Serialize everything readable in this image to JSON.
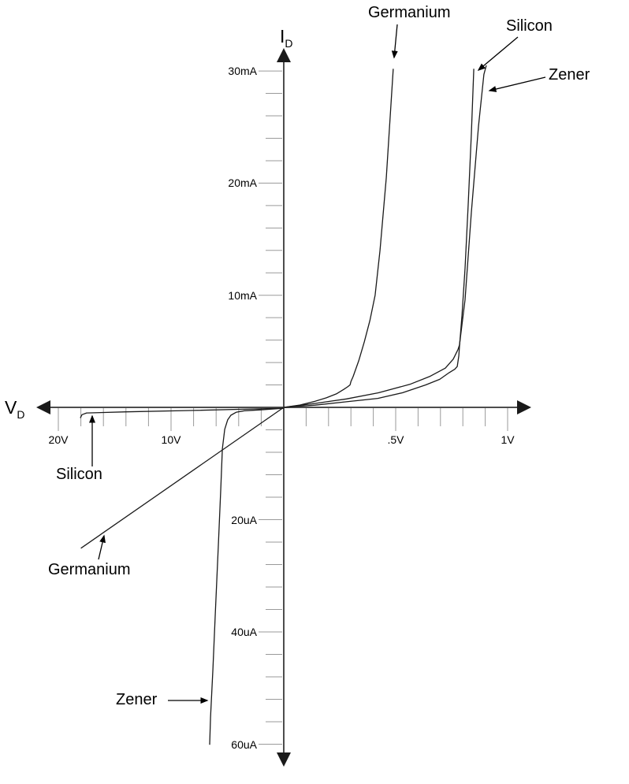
{
  "axis_labels": {
    "current": {
      "base": "I",
      "sub": "D"
    },
    "voltage": {
      "base": "V",
      "sub": "D"
    }
  },
  "annotations": {
    "germanium_top": "Germanium",
    "silicon_top": "Silicon",
    "zener_top": "Zener",
    "silicon_bottom": "Silicon",
    "germanium_bottom": "Germanium",
    "zener_bottom": "Zener"
  },
  "colors": {
    "axis": "#4d4d4d",
    "tick": "#9a9a9a",
    "curve": "#1a1a1a",
    "arrowhead": "#000000",
    "background": "#ffffff"
  },
  "chart_data": {
    "type": "line",
    "title": "",
    "description": "Forward and reverse I-V characteristic curves of Germanium, Silicon and Zener diodes; positive axes in volts/mA, negative axes compressed in volts/uA",
    "x_axis": {
      "label": "VD",
      "positive": {
        "unit": "V",
        "minor_step": 0.1,
        "max": 1.0,
        "labeled": [
          {
            "value": 0.5,
            "label": ".5V"
          },
          {
            "value": 1.0,
            "label": "1V"
          }
        ]
      },
      "negative": {
        "unit": "V",
        "minor_step": 2,
        "max": 20,
        "labeled": [
          {
            "value": -10,
            "label": "10V"
          },
          {
            "value": -20,
            "label": "20V"
          }
        ]
      }
    },
    "y_axis": {
      "label": "ID",
      "positive": {
        "unit": "mA",
        "minor_step": 2,
        "max": 30,
        "labeled": [
          {
            "value": 10,
            "label": "10mA"
          },
          {
            "value": 20,
            "label": "20mA"
          },
          {
            "value": 30,
            "label": "30mA"
          }
        ]
      },
      "negative": {
        "unit": "uA",
        "minor_step": 4,
        "max": 60,
        "labeled": [
          {
            "value": -20,
            "label": "20uA"
          },
          {
            "value": -40,
            "label": "40uA"
          },
          {
            "value": -60,
            "label": "60uA"
          }
        ]
      }
    },
    "series": [
      {
        "name": "germanium-forward",
        "current_unit": "mA",
        "points": [
          [
            0,
            0
          ],
          [
            0.07,
            0.2
          ],
          [
            0.14,
            0.55
          ],
          [
            0.19,
            0.85
          ],
          [
            0.235,
            1.2
          ],
          [
            0.268,
            1.6
          ],
          [
            0.285,
            1.83
          ],
          [
            0.296,
            2.0
          ],
          [
            0.3,
            2.3
          ],
          [
            0.31,
            2.75
          ],
          [
            0.335,
            4.15
          ],
          [
            0.36,
            5.85
          ],
          [
            0.385,
            7.75
          ],
          [
            0.408,
            10.0
          ],
          [
            0.43,
            14.0
          ],
          [
            0.458,
            20.5
          ],
          [
            0.475,
            25.8
          ],
          [
            0.489,
            30.2
          ]
        ]
      },
      {
        "name": "silicon-forward",
        "current_unit": "mA",
        "points": [
          [
            0,
            0
          ],
          [
            0.14,
            0.2
          ],
          [
            0.28,
            0.5
          ],
          [
            0.42,
            0.8
          ],
          [
            0.53,
            1.3
          ],
          [
            0.634,
            2.0
          ],
          [
            0.697,
            2.5
          ],
          [
            0.739,
            3.1
          ],
          [
            0.764,
            3.4
          ],
          [
            0.775,
            3.65
          ],
          [
            0.782,
            4.6
          ],
          [
            0.785,
            5.4
          ],
          [
            0.796,
            8.2
          ],
          [
            0.81,
            12.4
          ],
          [
            0.824,
            18.1
          ],
          [
            0.838,
            24.4
          ],
          [
            0.849,
            30.2
          ]
        ]
      },
      {
        "name": "zener-forward",
        "current_unit": "mA",
        "points": [
          [
            0,
            0
          ],
          [
            0.14,
            0.35
          ],
          [
            0.28,
            0.75
          ],
          [
            0.423,
            1.3
          ],
          [
            0.563,
            2.05
          ],
          [
            0.651,
            2.75
          ],
          [
            0.722,
            3.5
          ],
          [
            0.757,
            4.3
          ],
          [
            0.778,
            5.15
          ],
          [
            0.785,
            5.55
          ],
          [
            0.81,
            9.6
          ],
          [
            0.838,
            17.4
          ],
          [
            0.87,
            25.1
          ],
          [
            0.894,
            29.7
          ],
          [
            0.905,
            30.5
          ]
        ]
      },
      {
        "name": "silicon-reverse",
        "current_unit": "uA",
        "points": [
          [
            0,
            -0.15
          ],
          [
            -3,
            -0.3
          ],
          [
            -8,
            -0.55
          ],
          [
            -14,
            -0.8
          ],
          [
            -17.5,
            -1.0
          ],
          [
            -17.9,
            -1.3
          ],
          [
            -18.05,
            -1.9
          ]
        ]
      },
      {
        "name": "germanium-reverse",
        "current_unit": "uA",
        "points": [
          [
            0,
            0
          ],
          [
            -18,
            -25.1
          ]
        ]
      },
      {
        "name": "zener-reverse",
        "current_unit": "uA",
        "points": [
          [
            0,
            -0.15
          ],
          [
            -2.1,
            -0.45
          ],
          [
            -3.5,
            -0.6
          ],
          [
            -4.2,
            -0.85
          ],
          [
            -4.69,
            -1.4
          ],
          [
            -4.97,
            -2.2
          ],
          [
            -5.24,
            -3.9
          ],
          [
            -5.45,
            -7.4
          ],
          [
            -5.59,
            -14.5
          ],
          [
            -5.8,
            -24.3
          ],
          [
            -6.08,
            -36.9
          ],
          [
            -6.29,
            -46.7
          ],
          [
            -6.5,
            -55.2
          ],
          [
            -6.57,
            -60.1
          ]
        ]
      }
    ]
  }
}
